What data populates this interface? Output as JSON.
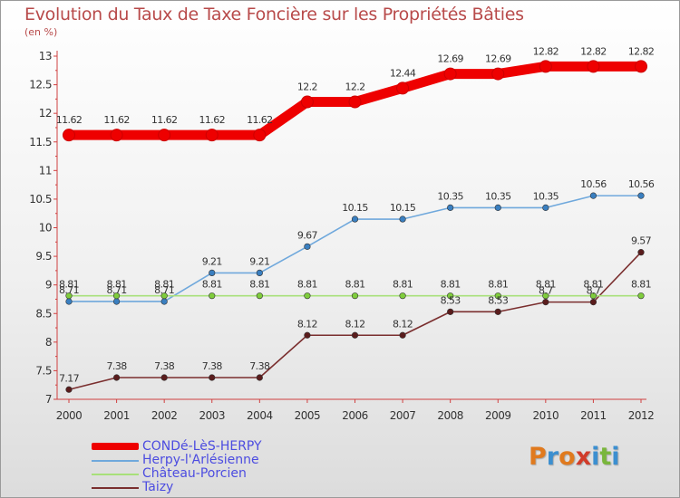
{
  "title": "Evolution du Taux de Taxe Foncière sur les Propriétés Bâties",
  "subtitle": "(en %)",
  "logo": {
    "text": "Proxiti",
    "letters": [
      "P",
      "r",
      "o",
      "x",
      "i",
      "t",
      "i"
    ],
    "colors": [
      "#e07a1e",
      "#3c8fd0",
      "#e07a1e",
      "#d13c2a",
      "#3c8fd0",
      "#7ab63c",
      "#3c8fd0"
    ]
  },
  "chart_data": {
    "type": "line",
    "title": "Evolution du Taux de Taxe Foncière sur les Propriétés Bâties",
    "ylabel": "(en %)",
    "x": [
      2000,
      2001,
      2002,
      2003,
      2004,
      2005,
      2006,
      2007,
      2008,
      2009,
      2010,
      2011,
      2012
    ],
    "ylim": [
      7,
      13
    ],
    "yticks": [
      7,
      7.5,
      8,
      8.5,
      9,
      9.5,
      10,
      10.5,
      11,
      11.5,
      12,
      12.5,
      13
    ],
    "ytick_labels": [
      "7",
      "7.5",
      "8",
      "8.5",
      "9",
      "9.5",
      "10",
      "10.5",
      "11",
      "11.5",
      "12",
      "12.5",
      "13"
    ],
    "grid": false,
    "legend_position": "bottom-left",
    "series": [
      {
        "name": "CONDé-LèS-HERPY",
        "color": "#ee0000",
        "marker_color": "#ee0000",
        "values": [
          11.62,
          11.62,
          11.62,
          11.62,
          11.62,
          12.2,
          12.2,
          12.44,
          12.69,
          12.69,
          12.82,
          12.82,
          12.82
        ],
        "labels": [
          "11.62",
          "11.62",
          "11.62",
          "11.62",
          "11.62",
          "12.2",
          "12.2",
          "12.44",
          "12.69",
          "12.69",
          "12.82",
          "12.82",
          "12.82"
        ]
      },
      {
        "name": "Herpy-l'Arlésienne",
        "color": "#6fa8dc",
        "marker_color": "#3a7fc0",
        "values": [
          8.71,
          8.71,
          8.71,
          9.21,
          9.21,
          9.67,
          10.15,
          10.15,
          10.35,
          10.35,
          10.35,
          10.56,
          10.56
        ],
        "labels": [
          "8.71",
          "8.71",
          "8.71",
          "9.21",
          "9.21",
          "9.67",
          "10.15",
          "10.15",
          "10.35",
          "10.35",
          "10.35",
          "10.56",
          "10.56"
        ]
      },
      {
        "name": "Château-Porcien",
        "color": "#a8e07a",
        "marker_color": "#7fcc3c",
        "values": [
          8.81,
          8.81,
          8.81,
          8.81,
          8.81,
          8.81,
          8.81,
          8.81,
          8.81,
          8.81,
          8.81,
          8.81,
          8.81
        ],
        "labels": [
          "8.81",
          "8.81",
          "8.81",
          "8.81",
          "8.81",
          "8.81",
          "8.81",
          "8.81",
          "8.81",
          "8.81",
          "8.81",
          "8.81",
          "8.81"
        ]
      },
      {
        "name": "Taizy",
        "color": "#7a2e2e",
        "marker_color": "#5a1c1c",
        "values": [
          7.17,
          7.38,
          7.38,
          7.38,
          7.38,
          8.12,
          8.12,
          8.12,
          8.53,
          8.53,
          8.7,
          8.7,
          9.57
        ],
        "labels": [
          "7.17",
          "7.38",
          "7.38",
          "7.38",
          "7.38",
          "8.12",
          "8.12",
          "8.12",
          "8.53",
          "8.53",
          "8.7",
          "8.7",
          "9.57"
        ]
      }
    ]
  }
}
